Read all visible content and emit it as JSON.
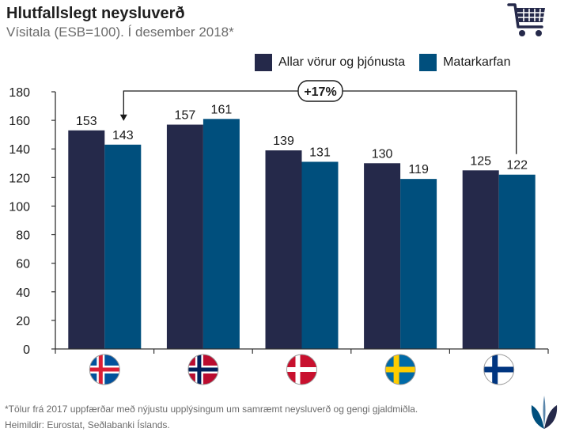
{
  "header": {
    "title": "Hlutfallslegt neysluverð",
    "subtitle": "Vísitala (ESB=100). Í desember 2018*"
  },
  "icons": [
    "shopping-cart-icon",
    "seal-logo-icon"
  ],
  "colors": {
    "series1": "#25294a",
    "series2": "#004f7d",
    "axis": "#333333",
    "text": "#1a1a1a",
    "muted": "#6b6b6b"
  },
  "annotation": {
    "label": "+17%"
  },
  "footer": {
    "footnote": "*Tölur frá 2017 uppfærðar með nýjustu upplýsingum um samræmt neysluverð og gengi gjaldmiðla.",
    "source": "Heimildir: Eurostat, Seðlabanki Íslands."
  },
  "chart_data": {
    "type": "bar",
    "categories": [
      "Iceland",
      "Norway",
      "Denmark",
      "Sweden",
      "Finland"
    ],
    "category_display": "flags",
    "series": [
      {
        "name": "Allar vörur og þjónusta",
        "values": [
          153,
          157,
          139,
          130,
          125
        ],
        "color": "#25294a"
      },
      {
        "name": "Matarkarfan",
        "values": [
          143,
          161,
          131,
          119,
          122
        ],
        "color": "#004f7d"
      }
    ],
    "ylim": [
      0,
      180
    ],
    "yticks": [
      0,
      20,
      40,
      60,
      80,
      100,
      120,
      140,
      160,
      180
    ],
    "data_labels": true,
    "grid": false,
    "legend": "top-right"
  }
}
